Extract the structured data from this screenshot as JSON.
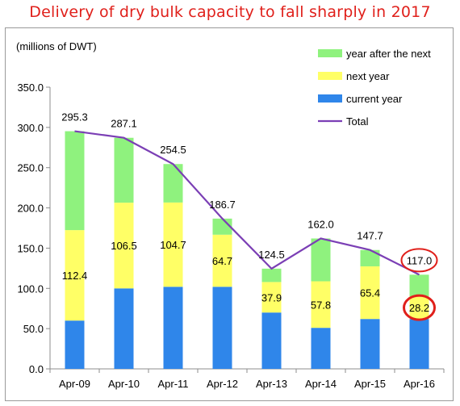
{
  "title": "Delivery of dry bulk capacity to fall sharply in 2017",
  "chart_data": {
    "type": "bar",
    "stacked": true,
    "unit_label": "(millions of DWT)",
    "categories": [
      "Apr-09",
      "Apr-10",
      "Apr-11",
      "Apr-12",
      "Apr-13",
      "Apr-14",
      "Apr-15",
      "Apr-16"
    ],
    "ylim": [
      0,
      350
    ],
    "yticks": [
      "0.0",
      "50.0",
      "100.0",
      "150.0",
      "200.0",
      "250.0",
      "300.0",
      "350.0"
    ],
    "series": [
      {
        "name": "current year",
        "color": "#2f86ea",
        "values": [
          60,
          100,
          102,
          102,
          70,
          51,
          62,
          62
        ]
      },
      {
        "name": "next year",
        "color": "#ffff66",
        "values": [
          112.4,
          106.5,
          104.7,
          64.7,
          37.9,
          57.8,
          65.4,
          28.2
        ]
      },
      {
        "name": "year after the next",
        "color": "#8ff27e",
        "values": [
          122.9,
          80.6,
          47.8,
          20,
          16.6,
          53.2,
          20.3,
          26.8
        ]
      }
    ],
    "next_year_labels": [
      "112.4",
      "106.5",
      "104.7",
      "64.7",
      "37.9",
      "57.8",
      "65.4",
      "28.2"
    ],
    "total": {
      "name": "Total",
      "color": "#7b3fb5",
      "values": [
        295.3,
        287.1,
        254.5,
        186.7,
        124.5,
        162.0,
        147.7,
        117.0
      ]
    },
    "total_labels": [
      "295.3",
      "287.1",
      "254.5",
      "186.7",
      "124.5",
      "162.0",
      "147.7",
      "117.0"
    ],
    "highlight_color": "#e0201b",
    "legend_position": "top-right",
    "grid": false
  }
}
